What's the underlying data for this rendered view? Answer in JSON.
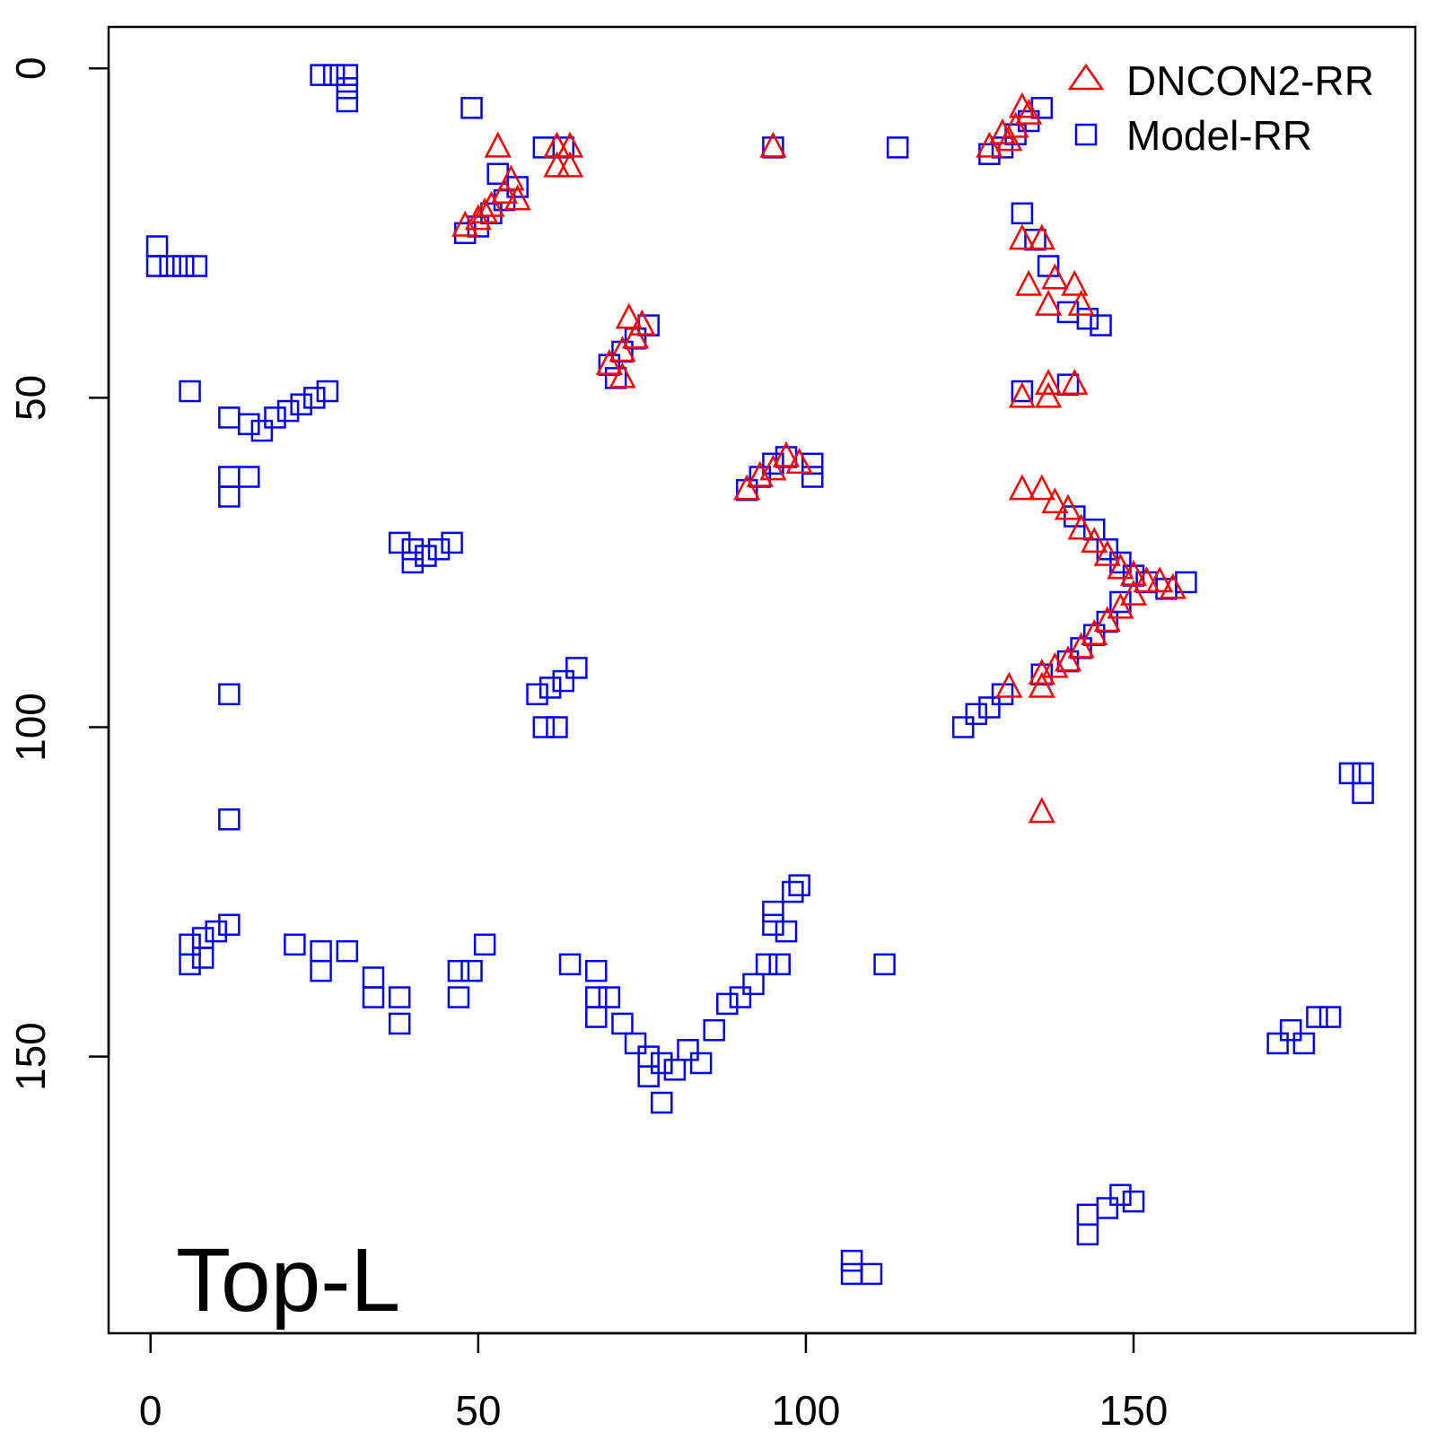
{
  "chart_data": {
    "type": "scatter",
    "title": "",
    "xlabel": "",
    "ylabel": "",
    "xlim": [
      -6.4,
      193
    ],
    "ylim": [
      -6.3,
      192
    ],
    "y_inverted": true,
    "x_ticks": [
      0,
      50,
      100,
      150
    ],
    "y_ticks": [
      0,
      50,
      100,
      150
    ],
    "x_tick_labels": [
      "0",
      "50",
      "100",
      "150"
    ],
    "y_tick_labels": [
      "0",
      "50",
      "100",
      "150"
    ],
    "grid": false,
    "legend": {
      "position": "top-right"
    },
    "annotation": "Top-L",
    "series": [
      {
        "name": "Model-RR",
        "marker": "square",
        "color": "#0000ff",
        "points": [
          [
            26,
            1
          ],
          [
            28,
            1
          ],
          [
            30,
            1
          ],
          [
            30,
            3
          ],
          [
            30,
            5
          ],
          [
            49,
            6
          ],
          [
            1,
            27
          ],
          [
            1,
            30
          ],
          [
            3,
            30
          ],
          [
            5,
            30
          ],
          [
            7,
            30
          ],
          [
            6,
            49
          ],
          [
            12,
            53
          ],
          [
            15,
            54
          ],
          [
            17,
            55
          ],
          [
            19,
            53
          ],
          [
            21,
            52
          ],
          [
            23,
            51
          ],
          [
            25,
            50
          ],
          [
            27,
            49
          ],
          [
            12,
            62
          ],
          [
            15,
            62
          ],
          [
            12,
            65
          ],
          [
            38,
            72
          ],
          [
            40,
            73
          ],
          [
            42,
            74
          ],
          [
            44,
            73
          ],
          [
            46,
            72
          ],
          [
            40,
            75
          ],
          [
            48,
            25
          ],
          [
            50,
            24
          ],
          [
            52,
            22
          ],
          [
            54,
            20
          ],
          [
            56,
            18
          ],
          [
            53,
            16
          ],
          [
            60,
            12
          ],
          [
            63,
            12
          ],
          [
            95,
            12
          ],
          [
            114,
            12
          ],
          [
            130,
            12
          ],
          [
            132,
            10
          ],
          [
            134,
            8
          ],
          [
            136,
            6
          ],
          [
            128,
            13
          ],
          [
            133,
            22
          ],
          [
            135,
            26
          ],
          [
            137,
            30
          ],
          [
            140,
            37
          ],
          [
            143,
            38
          ],
          [
            145,
            39
          ],
          [
            133,
            49
          ],
          [
            140,
            48
          ],
          [
            70,
            45
          ],
          [
            72,
            43
          ],
          [
            74,
            41
          ],
          [
            76,
            39
          ],
          [
            71,
            47
          ],
          [
            91,
            64
          ],
          [
            93,
            62
          ],
          [
            95,
            60
          ],
          [
            97,
            59
          ],
          [
            101,
            60
          ],
          [
            101,
            62
          ],
          [
            141,
            68
          ],
          [
            144,
            70
          ],
          [
            146,
            73
          ],
          [
            148,
            75
          ],
          [
            150,
            77
          ],
          [
            152,
            78
          ],
          [
            155,
            79
          ],
          [
            158,
            78
          ],
          [
            148,
            81
          ],
          [
            146,
            84
          ],
          [
            144,
            86
          ],
          [
            142,
            88
          ],
          [
            140,
            90
          ],
          [
            136,
            92
          ],
          [
            130,
            95
          ],
          [
            128,
            97
          ],
          [
            126,
            98
          ],
          [
            124,
            100
          ],
          [
            59,
            95
          ],
          [
            61,
            94
          ],
          [
            63,
            93
          ],
          [
            65,
            91
          ],
          [
            60,
            100
          ],
          [
            62,
            100
          ],
          [
            12,
            95
          ],
          [
            12,
            114
          ],
          [
            183,
            107
          ],
          [
            185,
            107
          ],
          [
            185,
            110
          ],
          [
            12,
            130
          ],
          [
            10,
            131
          ],
          [
            8,
            132
          ],
          [
            6,
            133
          ],
          [
            6,
            136
          ],
          [
            8,
            135
          ],
          [
            22,
            133
          ],
          [
            26,
            134
          ],
          [
            30,
            134
          ],
          [
            26,
            137
          ],
          [
            34,
            138
          ],
          [
            34,
            141
          ],
          [
            38,
            141
          ],
          [
            38,
            145
          ],
          [
            47,
            137
          ],
          [
            49,
            137
          ],
          [
            47,
            141
          ],
          [
            51,
            133
          ],
          [
            64,
            136
          ],
          [
            68,
            137
          ],
          [
            68,
            141
          ],
          [
            70,
            141
          ],
          [
            68,
            144
          ],
          [
            72,
            145
          ],
          [
            74,
            148
          ],
          [
            76,
            150
          ],
          [
            78,
            151
          ],
          [
            80,
            152
          ],
          [
            76,
            153
          ],
          [
            78,
            157
          ],
          [
            82,
            149
          ],
          [
            84,
            151
          ],
          [
            86,
            146
          ],
          [
            88,
            142
          ],
          [
            90,
            141
          ],
          [
            92,
            139
          ],
          [
            94,
            136
          ],
          [
            96,
            136
          ],
          [
            95,
            130
          ],
          [
            97,
            131
          ],
          [
            95,
            128
          ],
          [
            98,
            125
          ],
          [
            99,
            124
          ],
          [
            112,
            136
          ],
          [
            172,
            148
          ],
          [
            174,
            146
          ],
          [
            176,
            148
          ],
          [
            178,
            144
          ],
          [
            180,
            144
          ],
          [
            107,
            181
          ],
          [
            107,
            183
          ],
          [
            110,
            183
          ],
          [
            143,
            174
          ],
          [
            143,
            177
          ],
          [
            146,
            173
          ],
          [
            148,
            171
          ],
          [
            150,
            172
          ]
        ]
      },
      {
        "name": "DNCON2-RR",
        "marker": "triangle",
        "color": "#ff0000",
        "points": [
          [
            48,
            24
          ],
          [
            50,
            23
          ],
          [
            52,
            21
          ],
          [
            54,
            19
          ],
          [
            55,
            17
          ],
          [
            56,
            20
          ],
          [
            53,
            12
          ],
          [
            51,
            22
          ],
          [
            62,
            12
          ],
          [
            64,
            12
          ],
          [
            62,
            15
          ],
          [
            64,
            15
          ],
          [
            95,
            12
          ],
          [
            128,
            12
          ],
          [
            130,
            10
          ],
          [
            132,
            9
          ],
          [
            134,
            7
          ],
          [
            133,
            6
          ],
          [
            131,
            11
          ],
          [
            133,
            26
          ],
          [
            136,
            26
          ],
          [
            134,
            33
          ],
          [
            138,
            32
          ],
          [
            141,
            33
          ],
          [
            137,
            36
          ],
          [
            142,
            36
          ],
          [
            70,
            45
          ],
          [
            72,
            43
          ],
          [
            74,
            41
          ],
          [
            75,
            39
          ],
          [
            73,
            38
          ],
          [
            72,
            47
          ],
          [
            91,
            64
          ],
          [
            93,
            62
          ],
          [
            95,
            61
          ],
          [
            97,
            59
          ],
          [
            99,
            60
          ],
          [
            133,
            64
          ],
          [
            136,
            64
          ],
          [
            138,
            66
          ],
          [
            140,
            67
          ],
          [
            142,
            70
          ],
          [
            144,
            72
          ],
          [
            146,
            74
          ],
          [
            148,
            76
          ],
          [
            150,
            77
          ],
          [
            152,
            78
          ],
          [
            154,
            78
          ],
          [
            156,
            79
          ],
          [
            150,
            80
          ],
          [
            148,
            82
          ],
          [
            146,
            84
          ],
          [
            144,
            86
          ],
          [
            142,
            88
          ],
          [
            140,
            90
          ],
          [
            138,
            91
          ],
          [
            136,
            92
          ],
          [
            131,
            94
          ],
          [
            136,
            94
          ],
          [
            136,
            113
          ],
          [
            133,
            50
          ],
          [
            137,
            48
          ],
          [
            141,
            48
          ],
          [
            137,
            50
          ]
        ]
      }
    ]
  }
}
